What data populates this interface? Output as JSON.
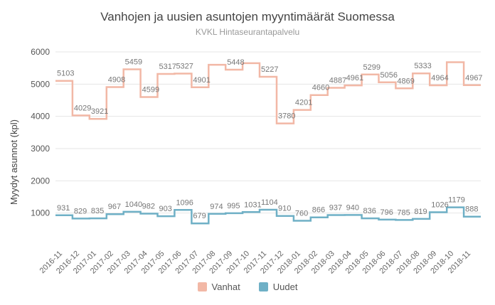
{
  "chart_data": {
    "type": "line",
    "step": true,
    "title": "Vanhojen ja uusien asuntojen myyntimäärät Suomessa",
    "subtitle": "KVKL Hintaseurantapalvelu",
    "xlabel": "",
    "ylabel": "Myydyt asunnot (kpl)",
    "ylim": [
      0,
      6000
    ],
    "yticks": [
      1000,
      2000,
      3000,
      4000,
      5000,
      6000
    ],
    "grid": true,
    "legend_position": "bottom",
    "x": [
      "2016-11",
      "2016-12",
      "2017-01",
      "2017-02",
      "2017-03",
      "2017-04",
      "2017-05",
      "2017-06",
      "2017-07",
      "2017-08",
      "2017-09",
      "2017-10",
      "2017-11",
      "2017-12",
      "2018-01",
      "2018-02",
      "2018-03",
      "2018-04",
      "2018-05",
      "2018-06",
      "2018-07",
      "2018-08",
      "2018-09",
      "2018-10",
      "2018-11"
    ],
    "series": [
      {
        "name": "Vanhat",
        "color": "#f2b8a6",
        "values": [
          5103,
          4029,
          3921,
          4908,
          5459,
          4599,
          5317,
          5327,
          4901,
          5600,
          5448,
          5650,
          5227,
          3780,
          4201,
          4660,
          4887,
          4961,
          5299,
          5056,
          4869,
          5333,
          4964,
          5680,
          4967
        ],
        "labels": [
          "5103",
          "4029",
          "3921",
          "4908",
          "5459",
          "4599",
          "5317",
          "5327",
          "4901",
          "",
          "5448",
          "",
          "5227",
          "3780",
          "4201",
          "4660",
          "4887",
          "4961",
          "5299",
          "5056",
          "4869",
          "5333",
          "4964",
          "",
          "4967"
        ]
      },
      {
        "name": "Uudet",
        "color": "#6fb0c6",
        "values": [
          931,
          829,
          835,
          967,
          1040,
          982,
          903,
          1096,
          679,
          974,
          995,
          1031,
          1104,
          910,
          760,
          866,
          937,
          940,
          836,
          796,
          785,
          819,
          1026,
          1179,
          888
        ],
        "labels": [
          "931",
          "829",
          "835",
          "967",
          "1040",
          "982",
          "903",
          "1096",
          "679",
          "974",
          "995",
          "1031",
          "1104",
          "910",
          "760",
          "866",
          "937",
          "940",
          "836",
          "796",
          "785",
          "819",
          "1026",
          "1179",
          "888"
        ]
      }
    ]
  }
}
